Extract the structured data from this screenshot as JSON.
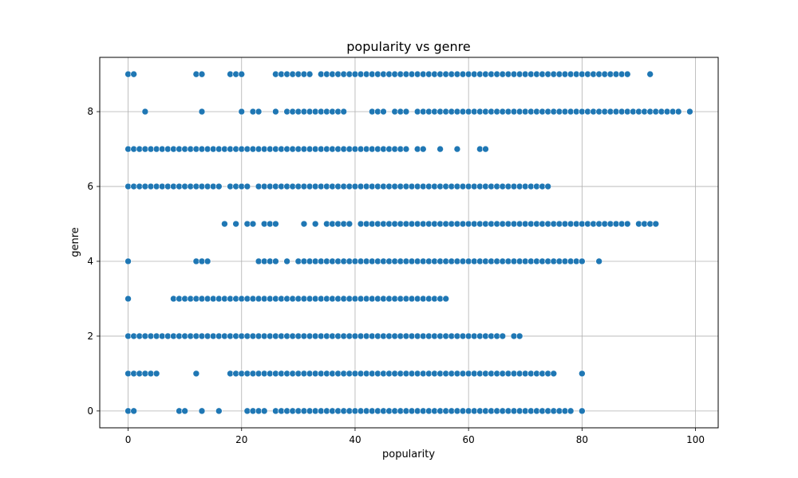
{
  "chart_data": {
    "type": "scatter",
    "title": "popularity vs genre",
    "xlabel": "popularity",
    "ylabel": "genre",
    "xlim": [
      -5,
      104
    ],
    "ylim": [
      -0.45,
      9.45
    ],
    "x_ticks": [
      0,
      20,
      40,
      60,
      80,
      100
    ],
    "y_ticks": [
      0,
      2,
      4,
      6,
      8
    ],
    "grid": true,
    "marker_color": "#1f77b4",
    "rows": [
      {
        "genre": 0,
        "x": [
          0,
          1,
          9,
          10,
          13,
          16,
          21,
          22,
          23,
          24,
          26,
          27,
          28,
          29,
          30,
          31,
          32,
          33,
          34,
          35,
          36,
          37,
          38,
          39,
          40,
          41,
          42,
          43,
          44,
          45,
          46,
          47,
          48,
          49,
          50,
          51,
          52,
          53,
          54,
          55,
          56,
          57,
          58,
          59,
          60,
          61,
          62,
          63,
          64,
          65,
          66,
          67,
          68,
          69,
          70,
          71,
          72,
          73,
          74,
          75,
          76,
          77,
          78,
          80
        ]
      },
      {
        "genre": 1,
        "x": [
          0,
          1,
          2,
          3,
          4,
          5,
          12,
          18,
          19,
          20,
          21,
          22,
          23,
          24,
          25,
          26,
          27,
          28,
          29,
          30,
          31,
          32,
          33,
          34,
          35,
          36,
          37,
          38,
          39,
          40,
          41,
          42,
          43,
          44,
          45,
          46,
          47,
          48,
          49,
          50,
          51,
          52,
          53,
          54,
          55,
          56,
          57,
          58,
          59,
          60,
          61,
          62,
          63,
          64,
          65,
          66,
          67,
          68,
          69,
          70,
          71,
          72,
          73,
          74,
          75,
          80
        ]
      },
      {
        "genre": 2,
        "x": [
          0,
          1,
          2,
          3,
          4,
          5,
          6,
          7,
          8,
          9,
          10,
          11,
          12,
          13,
          14,
          15,
          16,
          17,
          18,
          19,
          20,
          21,
          22,
          23,
          24,
          25,
          26,
          27,
          28,
          29,
          30,
          31,
          32,
          33,
          34,
          35,
          36,
          37,
          38,
          39,
          40,
          41,
          42,
          43,
          44,
          45,
          46,
          47,
          48,
          49,
          50,
          51,
          52,
          53,
          54,
          55,
          56,
          57,
          58,
          59,
          60,
          61,
          62,
          63,
          64,
          65,
          66,
          68,
          69
        ]
      },
      {
        "genre": 3,
        "x": [
          0,
          8,
          9,
          10,
          11,
          12,
          13,
          14,
          15,
          16,
          17,
          18,
          19,
          20,
          21,
          22,
          23,
          24,
          25,
          26,
          27,
          28,
          29,
          30,
          31,
          32,
          33,
          34,
          35,
          36,
          37,
          38,
          39,
          40,
          41,
          42,
          43,
          44,
          45,
          46,
          47,
          48,
          49,
          50,
          51,
          52,
          53,
          54,
          55,
          56
        ]
      },
      {
        "genre": 4,
        "x": [
          0,
          12,
          13,
          14,
          23,
          24,
          25,
          26,
          28,
          30,
          31,
          32,
          33,
          34,
          35,
          36,
          37,
          38,
          39,
          40,
          41,
          42,
          43,
          44,
          45,
          46,
          47,
          48,
          49,
          50,
          51,
          52,
          53,
          54,
          55,
          56,
          57,
          58,
          59,
          60,
          61,
          62,
          63,
          64,
          65,
          66,
          67,
          68,
          69,
          70,
          71,
          72,
          73,
          74,
          75,
          76,
          77,
          78,
          79,
          80,
          83
        ]
      },
      {
        "genre": 5,
        "x": [
          17,
          19,
          21,
          22,
          24,
          25,
          26,
          31,
          33,
          35,
          36,
          37,
          38,
          39,
          41,
          42,
          43,
          44,
          45,
          46,
          47,
          48,
          49,
          50,
          51,
          52,
          53,
          54,
          55,
          56,
          57,
          58,
          59,
          60,
          61,
          62,
          63,
          64,
          65,
          66,
          67,
          68,
          69,
          70,
          71,
          72,
          73,
          74,
          75,
          76,
          77,
          78,
          79,
          80,
          81,
          82,
          83,
          84,
          85,
          86,
          87,
          88,
          90,
          91,
          92,
          93
        ]
      },
      {
        "genre": 6,
        "x": [
          0,
          1,
          2,
          3,
          4,
          5,
          6,
          7,
          8,
          9,
          10,
          11,
          12,
          13,
          14,
          15,
          16,
          18,
          19,
          20,
          21,
          23,
          24,
          25,
          26,
          27,
          28,
          29,
          30,
          31,
          32,
          33,
          34,
          35,
          36,
          37,
          38,
          39,
          40,
          41,
          42,
          43,
          44,
          45,
          46,
          47,
          48,
          49,
          50,
          51,
          52,
          53,
          54,
          55,
          56,
          57,
          58,
          59,
          60,
          61,
          62,
          63,
          64,
          65,
          66,
          67,
          68,
          69,
          70,
          71,
          72,
          73,
          74
        ]
      },
      {
        "genre": 7,
        "x": [
          0,
          1,
          2,
          3,
          4,
          5,
          6,
          7,
          8,
          9,
          10,
          11,
          12,
          13,
          14,
          15,
          16,
          17,
          18,
          19,
          20,
          21,
          22,
          23,
          24,
          25,
          26,
          27,
          28,
          29,
          30,
          31,
          32,
          33,
          34,
          35,
          36,
          37,
          38,
          39,
          40,
          41,
          42,
          43,
          44,
          45,
          46,
          47,
          48,
          49,
          51,
          52,
          55,
          58,
          62,
          63
        ]
      },
      {
        "genre": 8,
        "x": [
          3,
          13,
          20,
          22,
          23,
          26,
          28,
          29,
          30,
          31,
          32,
          33,
          34,
          35,
          36,
          37,
          38,
          43,
          44,
          45,
          47,
          48,
          49,
          51,
          52,
          53,
          54,
          55,
          56,
          57,
          58,
          59,
          60,
          61,
          62,
          63,
          64,
          65,
          66,
          67,
          68,
          69,
          70,
          71,
          72,
          73,
          74,
          75,
          76,
          77,
          78,
          79,
          80,
          81,
          82,
          83,
          84,
          85,
          86,
          87,
          88,
          89,
          90,
          91,
          92,
          93,
          94,
          95,
          96,
          97,
          99
        ]
      },
      {
        "genre": 9,
        "x": [
          0,
          1,
          12,
          13,
          18,
          19,
          20,
          26,
          27,
          28,
          29,
          30,
          31,
          32,
          34,
          35,
          36,
          37,
          38,
          39,
          40,
          41,
          42,
          43,
          44,
          45,
          46,
          47,
          48,
          49,
          50,
          51,
          52,
          53,
          54,
          55,
          56,
          57,
          58,
          59,
          60,
          61,
          62,
          63,
          64,
          65,
          66,
          67,
          68,
          69,
          70,
          71,
          72,
          73,
          74,
          75,
          76,
          77,
          78,
          79,
          80,
          81,
          82,
          83,
          84,
          85,
          86,
          87,
          88,
          92
        ]
      }
    ]
  }
}
